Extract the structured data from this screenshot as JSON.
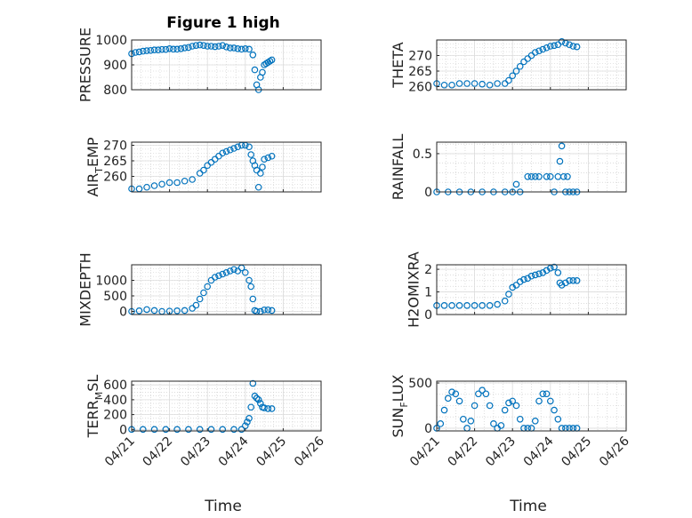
{
  "figure_title": "Figure 1 high",
  "xlabel": "Time",
  "x_tick_labels": [
    "04/21",
    "04/22",
    "04/23",
    "04/24",
    "04/25",
    "04/26"
  ],
  "marker_color": "#0072BD",
  "chart_data": [
    {
      "type": "scatter",
      "ylabel": "PRESSURE",
      "ylim": [
        800,
        1000
      ],
      "yticks": [
        800,
        900,
        1000
      ],
      "x": [
        0,
        0.1,
        0.2,
        0.3,
        0.4,
        0.5,
        0.6,
        0.7,
        0.8,
        0.9,
        1.0,
        1.1,
        1.2,
        1.3,
        1.4,
        1.5,
        1.6,
        1.7,
        1.8,
        1.9,
        2.0,
        2.1,
        2.2,
        2.3,
        2.4,
        2.5,
        2.6,
        2.7,
        2.8,
        2.9,
        3.0,
        3.1,
        3.2,
        3.25,
        3.3,
        3.35,
        3.4,
        3.45,
        3.5,
        3.55,
        3.6,
        3.65,
        3.7
      ],
      "y": [
        945,
        950,
        952,
        955,
        957,
        958,
        960,
        960,
        962,
        962,
        965,
        963,
        963,
        965,
        968,
        970,
        975,
        978,
        980,
        978,
        975,
        975,
        973,
        975,
        978,
        972,
        968,
        968,
        965,
        963,
        965,
        963,
        940,
        880,
        820,
        800,
        850,
        870,
        900,
        905,
        910,
        915,
        920
      ],
      "grid": true
    },
    {
      "type": "scatter",
      "ylabel": "THETA",
      "ylim": [
        259,
        275
      ],
      "yticks": [
        260,
        265,
        270
      ],
      "x": [
        0,
        0.2,
        0.4,
        0.6,
        0.8,
        1.0,
        1.2,
        1.4,
        1.6,
        1.8,
        1.9,
        2.0,
        2.1,
        2.2,
        2.3,
        2.4,
        2.5,
        2.6,
        2.7,
        2.8,
        2.9,
        3.0,
        3.1,
        3.2,
        3.3,
        3.4,
        3.5,
        3.6,
        3.7
      ],
      "y": [
        261,
        260.5,
        260.5,
        261,
        261,
        261,
        260.8,
        260.5,
        261,
        261,
        262,
        263.5,
        265,
        266.5,
        268,
        269,
        270,
        271,
        271.5,
        272,
        272.5,
        273,
        273.2,
        273.5,
        274.5,
        274,
        273.5,
        273,
        272.8
      ],
      "grid": true
    },
    {
      "type": "scatter",
      "ylabel": "AIR_TEMP",
      "ylim": [
        255,
        271
      ],
      "yticks": [
        260,
        265,
        270
      ],
      "x": [
        0,
        0.2,
        0.4,
        0.6,
        0.8,
        1.0,
        1.2,
        1.4,
        1.6,
        1.8,
        1.9,
        2.0,
        2.1,
        2.2,
        2.3,
        2.4,
        2.5,
        2.6,
        2.7,
        2.8,
        2.9,
        3.0,
        3.1,
        3.15,
        3.2,
        3.25,
        3.3,
        3.35,
        3.4,
        3.45,
        3.5,
        3.6,
        3.7
      ],
      "y": [
        256,
        256,
        256.5,
        257,
        257.5,
        258,
        258,
        258.5,
        259,
        261,
        262,
        263.5,
        264.5,
        265.5,
        266.5,
        267.5,
        268,
        268.5,
        269,
        269.5,
        270,
        270,
        269.5,
        267,
        265,
        263.5,
        262,
        256.5,
        261,
        263,
        265.5,
        266,
        266.5
      ],
      "grid": true
    },
    {
      "type": "scatter",
      "ylabel": "RAINFALL",
      "ylim": [
        0,
        0.65
      ],
      "yticks": [
        0,
        0.5
      ],
      "x": [
        0,
        0.3,
        0.6,
        0.9,
        1.2,
        1.5,
        1.8,
        2.0,
        2.1,
        2.2,
        2.4,
        2.5,
        2.6,
        2.7,
        2.9,
        3.0,
        3.1,
        3.2,
        3.25,
        3.3,
        3.35,
        3.4,
        3.45,
        3.5,
        3.6,
        3.7
      ],
      "y": [
        0,
        0,
        0,
        0,
        0,
        0,
        0,
        0,
        0.1,
        0,
        0.2,
        0.2,
        0.2,
        0.2,
        0.2,
        0.2,
        0,
        0.2,
        0.4,
        0.6,
        0.2,
        0,
        0.2,
        0,
        0,
        0
      ],
      "grid": true
    },
    {
      "type": "scatter",
      "ylabel": "MIXDEPTH",
      "ylim": [
        -100,
        1500
      ],
      "yticks": [
        0,
        500,
        1000
      ],
      "x": [
        0,
        0.2,
        0.4,
        0.6,
        0.8,
        1.0,
        1.2,
        1.4,
        1.6,
        1.7,
        1.8,
        1.9,
        2.0,
        2.1,
        2.2,
        2.3,
        2.4,
        2.5,
        2.6,
        2.7,
        2.8,
        2.9,
        3.0,
        3.1,
        3.15,
        3.2,
        3.25,
        3.3,
        3.4,
        3.5,
        3.6,
        3.7
      ],
      "y": [
        0,
        20,
        60,
        30,
        0,
        10,
        20,
        30,
        100,
        200,
        400,
        600,
        800,
        1000,
        1100,
        1150,
        1200,
        1250,
        1300,
        1350,
        1300,
        1400,
        1250,
        1000,
        800,
        400,
        30,
        0,
        0,
        50,
        50,
        30
      ],
      "grid": true
    },
    {
      "type": "scatter",
      "ylabel": "H2OMIXRA",
      "ylim": [
        0,
        2.2
      ],
      "yticks": [
        0,
        1,
        2
      ],
      "x": [
        0,
        0.2,
        0.4,
        0.6,
        0.8,
        1.0,
        1.2,
        1.4,
        1.6,
        1.8,
        1.9,
        2.0,
        2.1,
        2.2,
        2.3,
        2.4,
        2.5,
        2.6,
        2.7,
        2.8,
        2.9,
        3.0,
        3.1,
        3.2,
        3.25,
        3.3,
        3.4,
        3.5,
        3.6,
        3.7
      ],
      "y": [
        0.4,
        0.4,
        0.4,
        0.4,
        0.4,
        0.4,
        0.4,
        0.4,
        0.45,
        0.6,
        0.9,
        1.2,
        1.3,
        1.45,
        1.55,
        1.6,
        1.7,
        1.75,
        1.8,
        1.85,
        1.95,
        2.05,
        2.1,
        1.85,
        1.4,
        1.3,
        1.4,
        1.5,
        1.5,
        1.5
      ],
      "grid": true
    },
    {
      "type": "scatter",
      "ylabel": "TERR_MSL",
      "ylim": [
        -20,
        650
      ],
      "yticks": [
        0,
        200,
        400,
        600
      ],
      "x": [
        0,
        0.3,
        0.6,
        0.9,
        1.2,
        1.5,
        1.8,
        2.1,
        2.4,
        2.7,
        2.9,
        3.0,
        3.05,
        3.1,
        3.15,
        3.2,
        3.25,
        3.3,
        3.35,
        3.4,
        3.45,
        3.5,
        3.6,
        3.7
      ],
      "y": [
        0,
        0,
        0,
        0,
        0,
        0,
        0,
        0,
        0,
        0,
        0,
        50,
        100,
        150,
        300,
        620,
        450,
        420,
        400,
        350,
        300,
        290,
        280,
        280
      ],
      "grid": true
    },
    {
      "type": "scatter",
      "ylabel": "SUN_FLUX",
      "ylim": [
        -30,
        520
      ],
      "yticks": [
        0,
        500
      ],
      "x": [
        0,
        0.1,
        0.2,
        0.3,
        0.4,
        0.5,
        0.6,
        0.7,
        0.8,
        0.9,
        1.0,
        1.1,
        1.2,
        1.3,
        1.4,
        1.5,
        1.6,
        1.7,
        1.8,
        1.9,
        2.0,
        2.1,
        2.2,
        2.3,
        2.4,
        2.5,
        2.6,
        2.7,
        2.8,
        2.9,
        3.0,
        3.1,
        3.2,
        3.3,
        3.4,
        3.5,
        3.6,
        3.7
      ],
      "y": [
        0,
        50,
        200,
        330,
        400,
        380,
        300,
        100,
        0,
        80,
        250,
        380,
        420,
        380,
        250,
        50,
        0,
        30,
        200,
        280,
        300,
        250,
        100,
        0,
        0,
        0,
        80,
        300,
        380,
        380,
        300,
        200,
        100,
        0,
        0,
        0,
        0,
        0
      ],
      "grid": true
    }
  ]
}
